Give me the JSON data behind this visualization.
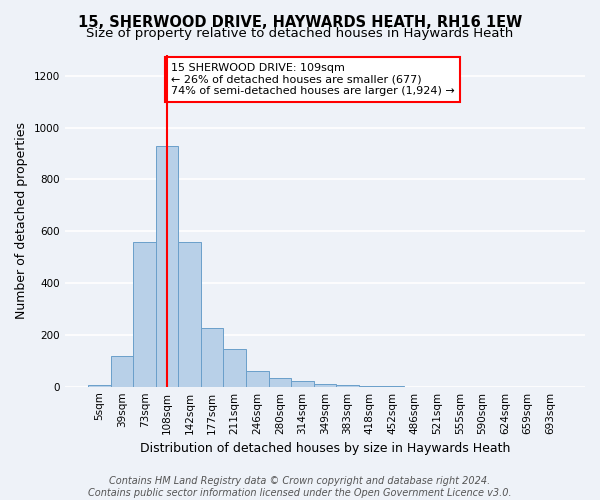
{
  "title_line1": "15, SHERWOOD DRIVE, HAYWARDS HEATH, RH16 1EW",
  "title_line2": "Size of property relative to detached houses in Haywards Heath",
  "xlabel": "Distribution of detached houses by size in Haywards Heath",
  "ylabel": "Number of detached properties",
  "footer_line1": "Contains HM Land Registry data © Crown copyright and database right 2024.",
  "footer_line2": "Contains public sector information licensed under the Open Government Licence v3.0.",
  "bin_labels": [
    "5sqm",
    "39sqm",
    "73sqm",
    "108sqm",
    "142sqm",
    "177sqm",
    "211sqm",
    "246sqm",
    "280sqm",
    "314sqm",
    "349sqm",
    "383sqm",
    "418sqm",
    "452sqm",
    "486sqm",
    "521sqm",
    "555sqm",
    "590sqm",
    "624sqm",
    "659sqm",
    "693sqm"
  ],
  "bar_values": [
    5,
    120,
    560,
    930,
    560,
    225,
    145,
    60,
    32,
    20,
    10,
    5,
    2,
    1,
    0,
    0,
    0,
    0,
    0,
    0,
    0
  ],
  "bar_color": "#b8d0e8",
  "bar_edge_color": "#6a9fca",
  "property_bin_index": 3,
  "annotation_text": "15 SHERWOOD DRIVE: 109sqm\n← 26% of detached houses are smaller (677)\n74% of semi-detached houses are larger (1,924) →",
  "annotation_box_color": "white",
  "annotation_box_edge_color": "red",
  "vline_color": "red",
  "ylim": [
    0,
    1280
  ],
  "yticks": [
    0,
    200,
    400,
    600,
    800,
    1000,
    1200
  ],
  "background_color": "#eef2f8",
  "grid_color": "white",
  "title_fontsize": 10.5,
  "subtitle_fontsize": 9.5,
  "ylabel_fontsize": 9,
  "xlabel_fontsize": 9,
  "tick_fontsize": 7.5,
  "annotation_fontsize": 8,
  "footer_fontsize": 7
}
